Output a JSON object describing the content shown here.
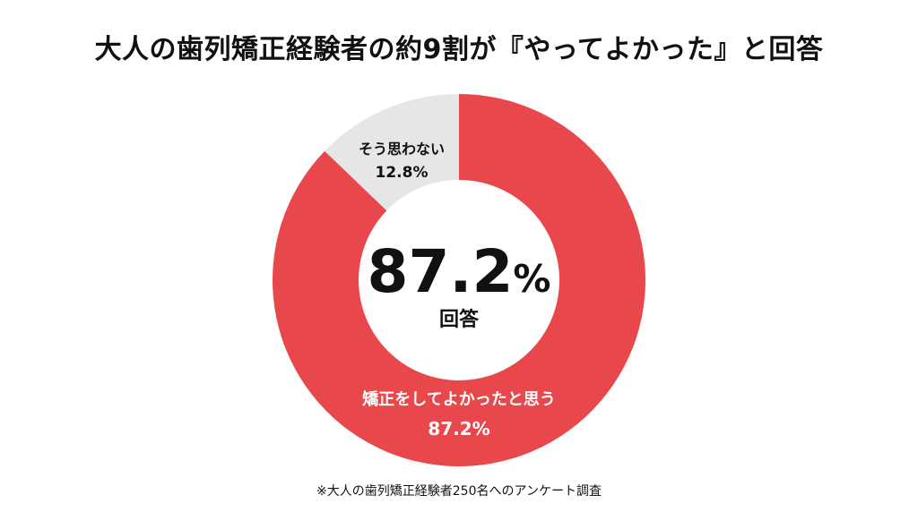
{
  "chart_data": {
    "type": "pie",
    "title": "大人の歯列矯正経験者の約9割が『やってよかった』と回答",
    "slices": [
      {
        "label": "矯正をしてよかったと思う",
        "value": 87.2,
        "value_label": "87.2%",
        "color": "#e8474c"
      },
      {
        "label": "そう思わない",
        "value": 12.8,
        "value_label": "12.8%",
        "color": "#e6e6e6"
      }
    ],
    "center": {
      "value": "87.2",
      "unit": "%",
      "caption": "回答"
    },
    "footnote": "※大人の歯列矯正経験者250名へのアンケート調査"
  }
}
